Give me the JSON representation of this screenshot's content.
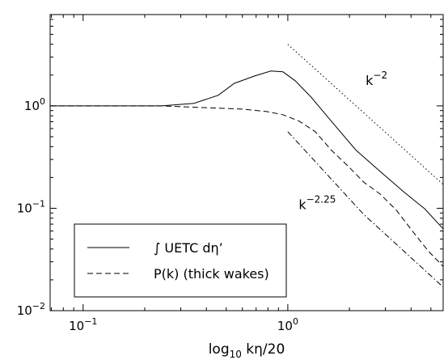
{
  "chart_data": {
    "type": "line",
    "xlabel": {
      "text": "log",
      "subscript": "10",
      "rest": " kη/20"
    },
    "xscale": "log",
    "yscale": "log",
    "xlim": [
      0.069,
      5.74
    ],
    "ylim": [
      0.01,
      7.8
    ],
    "xticks": [
      {
        "value": 0.1,
        "label": "10",
        "exponent": "−1"
      },
      {
        "value": 1,
        "label": "10",
        "exponent": "0"
      }
    ],
    "yticks": [
      {
        "value": 0.01,
        "label": "10",
        "exponent": "−2"
      },
      {
        "value": 0.1,
        "label": "10",
        "exponent": "−1"
      },
      {
        "value": 1,
        "label": "10",
        "exponent": "0"
      }
    ],
    "xminorticks": [
      0.07,
      0.08,
      0.09,
      0.2,
      0.3,
      0.4,
      0.5,
      0.6,
      0.7,
      0.8,
      0.9,
      2,
      3,
      4,
      5
    ],
    "yminorticks": [
      0.02,
      0.03,
      0.04,
      0.05,
      0.06,
      0.07,
      0.08,
      0.09,
      0.2,
      0.3,
      0.4,
      0.5,
      0.6,
      0.7,
      0.8,
      0.9,
      2,
      3,
      4,
      5,
      6,
      7
    ],
    "legend": "lower left",
    "series": [
      {
        "name": "∫ UETC dη’",
        "color": "#000000",
        "style": "solid",
        "x": [
          0.069,
          0.153,
          0.242,
          0.348,
          0.457,
          0.548,
          0.689,
          0.826,
          0.947,
          1.086,
          1.3,
          1.63,
          2.15,
          2.82,
          3.71,
          4.66,
          5.74
        ],
        "values": [
          1.0,
          1.0,
          1.0,
          1.06,
          1.27,
          1.66,
          1.96,
          2.19,
          2.15,
          1.76,
          1.22,
          0.71,
          0.37,
          0.23,
          0.143,
          0.099,
          0.063
        ]
      },
      {
        "name": "P(k) (thick wakes)",
        "color": "#000000",
        "style": "dashed",
        "x": [
          0.069,
          0.242,
          0.601,
          0.789,
          0.947,
          1.136,
          1.362,
          1.63,
          1.96,
          2.35,
          2.82,
          3.39,
          4.06,
          4.87,
          5.74
        ],
        "values": [
          1.0,
          1.0,
          0.93,
          0.88,
          0.82,
          0.71,
          0.56,
          0.37,
          0.26,
          0.18,
          0.138,
          0.096,
          0.06,
          0.038,
          0.027
        ]
      },
      {
        "color": "#000000",
        "style": "dashdot",
        "x": [
          1.0,
          2.35,
          5.74
        ],
        "values": [
          0.56,
          0.087,
          0.017
        ]
      },
      {
        "color": "#000000",
        "style": "dotted",
        "x": [
          1.0,
          5.74
        ],
        "values": [
          3.99,
          0.171
        ]
      }
    ],
    "annotations": [
      {
        "base": "k",
        "exponent": "−2",
        "x": 2.4,
        "y": 1.6
      },
      {
        "base": "k",
        "exponent": "−2.25",
        "x": 1.13,
        "y": 0.098
      }
    ]
  }
}
